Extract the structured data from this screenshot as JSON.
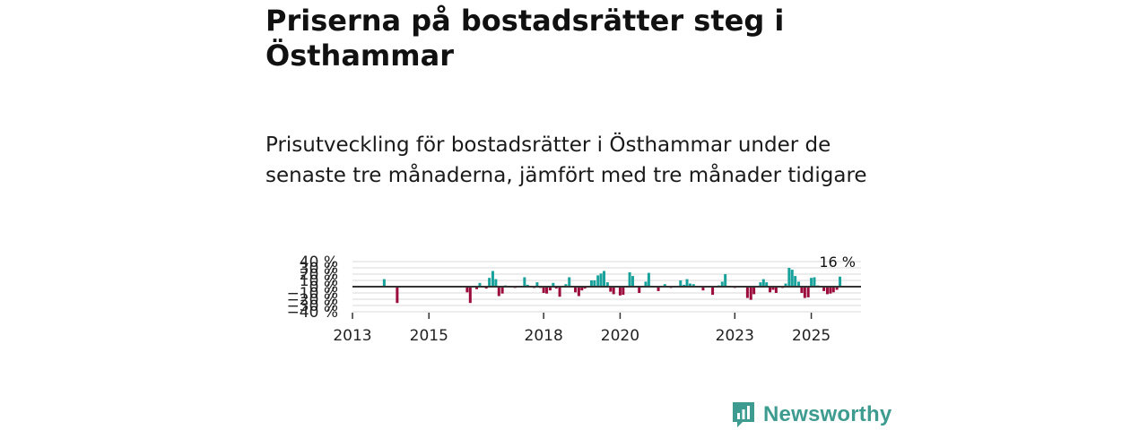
{
  "title": "Priserna på bostadsrätter steg i Östhammar",
  "subtitle": "Prisutveckling för bostadsrätter i Östhammar under de senaste tre månaderna, jämfört med tre månader tidigare",
  "brand": {
    "name": "Newsworthy"
  },
  "colors": {
    "positive": "#19a29b",
    "negative": "#9b0c3c",
    "grid": "#d9d9d9",
    "zero_line": "#333333",
    "brand": "#3d9c8f"
  },
  "chart_data": {
    "type": "bar",
    "title": "Priserna på bostadsrätter steg i Östhammar",
    "xlabel": "",
    "ylabel": "",
    "ylim": [
      -40,
      40
    ],
    "xlim": [
      2013.0,
      2026.3
    ],
    "y_ticks": [
      {
        "value": 40,
        "label": "40 %"
      },
      {
        "value": 30,
        "label": "30 %"
      },
      {
        "value": 20,
        "label": "20 %"
      },
      {
        "value": 10,
        "label": "10 %"
      },
      {
        "value": 0,
        "label": "0 %"
      },
      {
        "value": -10,
        "label": "−10 %"
      },
      {
        "value": -20,
        "label": "−20 %"
      },
      {
        "value": -30,
        "label": "−30 %"
      },
      {
        "value": -40,
        "label": "−40 %"
      }
    ],
    "x_ticks": [
      {
        "value": 2013,
        "label": "2013"
      },
      {
        "value": 2015,
        "label": "2015"
      },
      {
        "value": 2018,
        "label": "2018"
      },
      {
        "value": 2020,
        "label": "2020"
      },
      {
        "value": 2023,
        "label": "2023"
      },
      {
        "value": 2025,
        "label": "2025"
      }
    ],
    "annotation": {
      "label": "16 %",
      "x": 2025.75
    },
    "series": [
      {
        "name": "Prisutveckling",
        "x": [
          2013.83,
          2014.17,
          2016.0,
          2016.08,
          2016.25,
          2016.33,
          2016.5,
          2016.58,
          2016.67,
          2016.75,
          2016.83,
          2016.92,
          2017.0,
          2017.08,
          2017.25,
          2017.33,
          2017.5,
          2017.58,
          2017.75,
          2017.83,
          2017.92,
          2018.0,
          2018.08,
          2018.17,
          2018.25,
          2018.33,
          2018.42,
          2018.58,
          2018.67,
          2018.83,
          2018.92,
          2019.0,
          2019.08,
          2019.25,
          2019.33,
          2019.42,
          2019.5,
          2019.58,
          2019.67,
          2019.75,
          2019.83,
          2020.0,
          2020.08,
          2020.25,
          2020.33,
          2020.5,
          2020.67,
          2020.75,
          2020.83,
          2021.0,
          2021.17,
          2021.33,
          2021.58,
          2021.67,
          2021.75,
          2021.83,
          2021.92,
          2022.17,
          2022.42,
          2022.58,
          2022.67,
          2022.75,
          2023.0,
          2023.33,
          2023.42,
          2023.5,
          2023.67,
          2023.75,
          2023.83,
          2023.92,
          2024.0,
          2024.08,
          2024.25,
          2024.33,
          2024.42,
          2024.5,
          2024.58,
          2024.67,
          2024.75,
          2024.83,
          2024.92,
          2025.0,
          2025.08,
          2025.17,
          2025.33,
          2025.42,
          2025.5,
          2025.58,
          2025.67,
          2025.75
        ],
        "values": [
          12,
          -26,
          -9,
          -26,
          -4,
          6,
          -3,
          14,
          25,
          12,
          -15,
          -11,
          2,
          1,
          -2,
          1,
          15,
          3,
          -2,
          7,
          -2,
          -10,
          -11,
          -6,
          6,
          -3,
          -16,
          4,
          15,
          -9,
          -15,
          -6,
          -3,
          10,
          10,
          18,
          21,
          25,
          7,
          -8,
          -12,
          -14,
          -13,
          23,
          17,
          -10,
          8,
          22,
          -1,
          -7,
          4,
          -2,
          10,
          3,
          12,
          5,
          4,
          -6,
          -13,
          2,
          8,
          20,
          -2,
          -18,
          -21,
          -12,
          7,
          12,
          7,
          -9,
          -5,
          -10,
          -2,
          5,
          30,
          27,
          17,
          8,
          -10,
          -18,
          -17,
          14,
          15,
          2,
          -7,
          -12,
          -11,
          -9,
          -5,
          16
        ]
      }
    ]
  }
}
